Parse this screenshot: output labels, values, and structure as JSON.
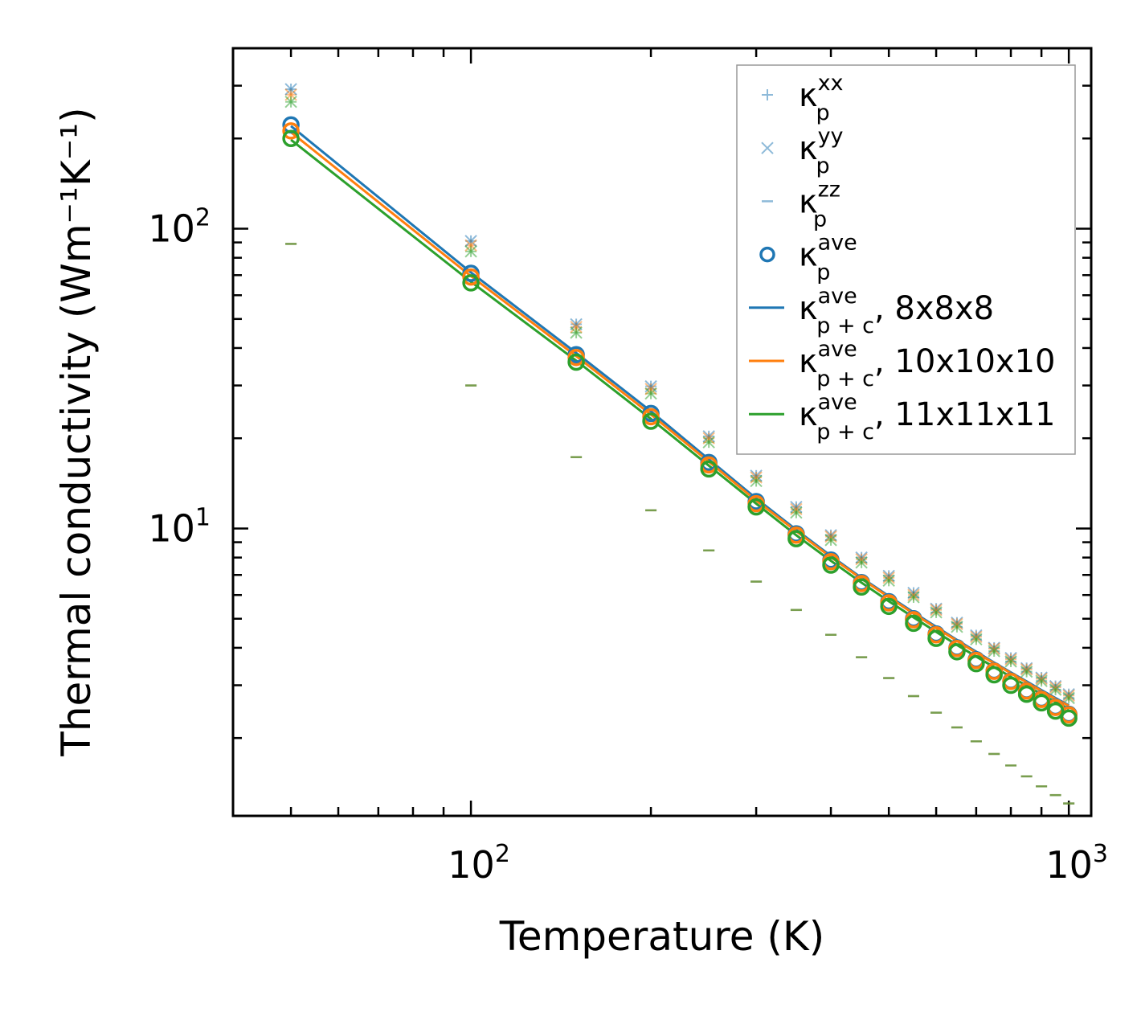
{
  "chart_data": {
    "type": "scatter",
    "title": "",
    "xlabel": "Temperature (K)",
    "ylabel": "Thermal conductivity (Wm⁻¹K⁻¹)",
    "xscale": "log",
    "yscale": "log",
    "xlim": [
      40,
      1090
    ],
    "ylim": [
      1.1,
      400
    ],
    "x_ticks": [
      {
        "base": "10",
        "exp": "2"
      },
      {
        "base": "10",
        "exp": "3"
      }
    ],
    "y_ticks": [
      {
        "base": "10",
        "exp": "1"
      },
      {
        "base": "10",
        "exp": "2"
      }
    ],
    "legend_position": "top-right",
    "x": [
      50,
      100,
      150,
      200,
      250,
      300,
      350,
      400,
      450,
      500,
      550,
      600,
      650,
      700,
      750,
      800,
      850,
      900,
      950,
      1000
    ],
    "series": [
      {
        "name": "κp xx",
        "label_main": "κ",
        "label_sup": "xx",
        "label_sub": "p",
        "marker": "plus",
        "colors": [
          "#1f77b4",
          "#ff7f0e",
          "#2ca02c"
        ],
        "values_by_grid": [
          [
            292,
            91,
            48,
            29.8,
            20.3,
            15.0,
            11.8,
            9.5,
            8.0,
            6.95,
            6.1,
            5.4,
            4.85,
            4.4,
            4.0,
            3.7,
            3.42,
            3.18,
            2.98,
            2.8
          ],
          [
            280,
            88,
            47,
            29.2,
            20.0,
            14.8,
            11.6,
            9.4,
            7.9,
            6.85,
            6.0,
            5.35,
            4.8,
            4.35,
            3.97,
            3.66,
            3.39,
            3.15,
            2.95,
            2.77
          ],
          [
            265,
            84,
            45,
            28.2,
            19.4,
            14.4,
            11.3,
            9.15,
            7.7,
            6.7,
            5.9,
            5.25,
            4.7,
            4.27,
            3.9,
            3.6,
            3.33,
            3.1,
            2.9,
            2.72
          ]
        ]
      },
      {
        "name": "κp yy",
        "label_main": "κ",
        "label_sup": "yy",
        "label_sub": "p",
        "marker": "x",
        "colors": [
          "#1f77b4",
          "#ff7f0e",
          "#2ca02c"
        ],
        "values_by_grid": [
          [
            292,
            91,
            48,
            29.8,
            20.3,
            15.0,
            11.8,
            9.5,
            8.0,
            6.95,
            6.1,
            5.4,
            4.85,
            4.4,
            4.0,
            3.7,
            3.42,
            3.18,
            2.98,
            2.8
          ],
          [
            280,
            88,
            47,
            29.2,
            20.0,
            14.8,
            11.6,
            9.4,
            7.9,
            6.85,
            6.0,
            5.35,
            4.8,
            4.35,
            3.97,
            3.66,
            3.39,
            3.15,
            2.95,
            2.77
          ],
          [
            265,
            84,
            45,
            28.2,
            19.4,
            14.4,
            11.3,
            9.15,
            7.7,
            6.7,
            5.9,
            5.25,
            4.7,
            4.27,
            3.9,
            3.6,
            3.33,
            3.1,
            2.9,
            2.72
          ]
        ]
      },
      {
        "name": "κp zz",
        "label_main": "κ",
        "label_sup": "zz",
        "label_sub": "p",
        "marker": "hline",
        "colors": [
          "#1f77b4",
          "#ff7f0e",
          "#2ca02c"
        ],
        "values_by_grid": [
          [
            89,
            30.0,
            17.3,
            11.5,
            8.45,
            6.65,
            5.35,
            4.42,
            3.72,
            3.17,
            2.76,
            2.43,
            2.17,
            1.95,
            1.77,
            1.62,
            1.49,
            1.38,
            1.29,
            1.21
          ],
          [
            89,
            30.0,
            17.3,
            11.5,
            8.45,
            6.65,
            5.35,
            4.42,
            3.72,
            3.17,
            2.76,
            2.43,
            2.17,
            1.95,
            1.77,
            1.62,
            1.49,
            1.38,
            1.29,
            1.21
          ],
          [
            89,
            30.0,
            17.3,
            11.5,
            8.45,
            6.65,
            5.35,
            4.42,
            3.72,
            3.17,
            2.76,
            2.43,
            2.17,
            1.95,
            1.77,
            1.62,
            1.49,
            1.38,
            1.29,
            1.21
          ]
        ]
      },
      {
        "name": "κp ave",
        "label_main": "κ",
        "label_sup": "ave",
        "label_sub": "p",
        "marker": "circle",
        "colors": [
          "#1f77b4",
          "#ff7f0e",
          "#2ca02c"
        ],
        "values_by_grid": [
          [
            222,
            71,
            38.0,
            24.2,
            16.6,
            12.3,
            9.6,
            7.85,
            6.6,
            5.7,
            5.0,
            4.45,
            4.0,
            3.65,
            3.35,
            3.1,
            2.88,
            2.7,
            2.54,
            2.4
          ],
          [
            212,
            69,
            37.2,
            23.6,
            16.3,
            12.1,
            9.5,
            7.75,
            6.55,
            5.65,
            4.96,
            4.42,
            3.98,
            3.63,
            3.34,
            3.09,
            2.87,
            2.69,
            2.53,
            2.39
          ],
          [
            200,
            66,
            35.9,
            22.8,
            15.8,
            11.8,
            9.25,
            7.55,
            6.38,
            5.5,
            4.83,
            4.3,
            3.88,
            3.54,
            3.25,
            3.0,
            2.8,
            2.62,
            2.46,
            2.33
          ]
        ]
      },
      {
        "name": "κp+c ave, 8x8x8",
        "label_main": "κ",
        "label_sup": "ave",
        "label_sub": "p + c",
        "label_suffix": ", 8x8x8",
        "marker": "line",
        "color": "#1f77b4",
        "values": [
          220,
          71.5,
          38.5,
          24.6,
          17.0,
          12.6,
          9.9,
          8.1,
          6.85,
          5.95,
          5.25,
          4.7,
          4.25,
          3.88,
          3.57,
          3.31,
          3.09,
          2.89,
          2.72,
          2.57
        ]
      },
      {
        "name": "κp+c ave, 10x10x10",
        "label_main": "κ",
        "label_sup": "ave",
        "label_sub": "p + c",
        "label_suffix": ", 10x10x10",
        "marker": "line",
        "color": "#ff7f0e",
        "values": [
          210,
          69.5,
          37.6,
          24.0,
          16.7,
          12.4,
          9.8,
          8.02,
          6.8,
          5.9,
          5.2,
          4.66,
          4.22,
          3.85,
          3.55,
          3.29,
          3.07,
          2.87,
          2.7,
          2.56
        ]
      },
      {
        "name": "κp+c ave, 11x11x11",
        "label_main": "κ",
        "label_sup": "ave",
        "label_sub": "p + c",
        "label_suffix": ", 11x11x11",
        "marker": "line",
        "color": "#2ca02c",
        "values": [
          198,
          66.5,
          36.3,
          23.2,
          16.2,
          12.1,
          9.5,
          7.8,
          6.6,
          5.72,
          5.05,
          4.52,
          4.09,
          3.74,
          3.45,
          3.2,
          2.99,
          2.8,
          2.64,
          2.5
        ]
      }
    ]
  }
}
